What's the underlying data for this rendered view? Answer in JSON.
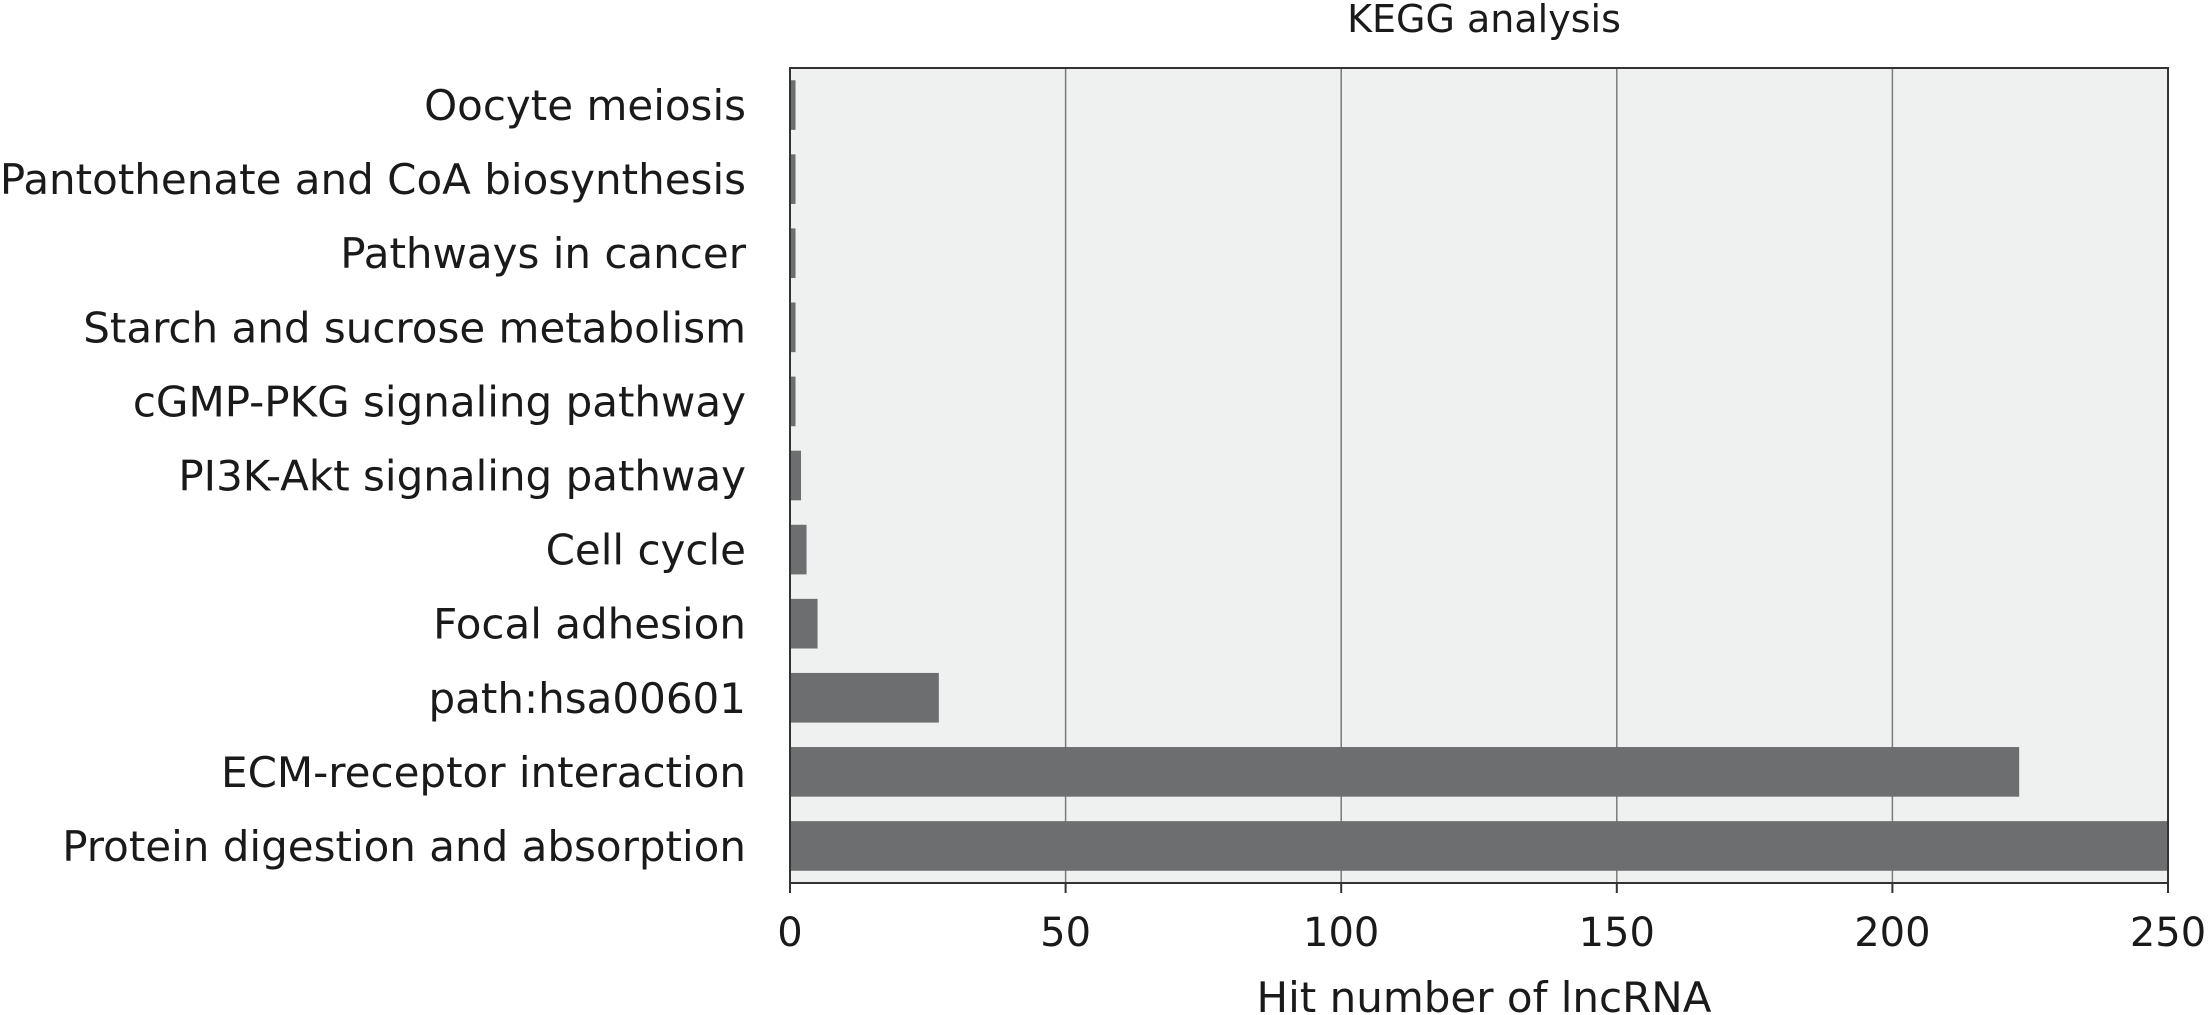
{
  "chart_data": {
    "type": "bar",
    "orientation": "horizontal",
    "title": "KEGG analysis",
    "xlabel": "Hit number of lncRNA",
    "ylabel": "",
    "xlim": [
      0,
      250
    ],
    "xticks": [
      0,
      50,
      100,
      150,
      200,
      250
    ],
    "grid": "vertical",
    "categories": [
      "Oocyte meiosis",
      "Pantothenate and CoA biosynthesis",
      "Pathways in cancer",
      "Starch and sucrose metabolism",
      "cGMP-PKG signaling pathway",
      "PI3K-Akt signaling pathway",
      "Cell cycle",
      "Focal adhesion",
      "path:hsa00601",
      "ECM-receptor interaction",
      "Protein digestion and absorption"
    ],
    "values": [
      1,
      1,
      1,
      1,
      1,
      2,
      3,
      5,
      27,
      223,
      250
    ],
    "colors": {
      "bar": "#6d6e70",
      "plot_background": "#eff1f0",
      "gridline": "#7a7a7a",
      "axis": "#333333"
    }
  }
}
